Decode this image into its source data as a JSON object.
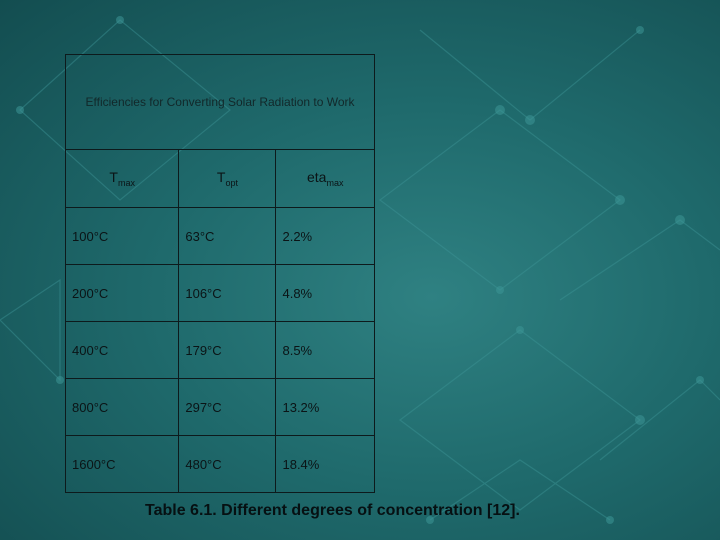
{
  "table": {
    "title": "Efficiencies for Converting Solar Radiation to Work",
    "headers": [
      {
        "main": "T",
        "sub": "max"
      },
      {
        "main": "T",
        "sub": "opt"
      },
      {
        "main": "eta",
        "sub": "max"
      }
    ],
    "rows": [
      [
        "100°C",
        "63°C",
        "2.2%"
      ],
      [
        "200°C",
        "106°C",
        "4.8%"
      ],
      [
        "400°C",
        "179°C",
        "8.5%"
      ],
      [
        "800°C",
        "297°C",
        "13.2%"
      ],
      [
        "1600°C",
        "480°C",
        "18.4%"
      ]
    ]
  },
  "caption": "Table 6.1. Different degrees of concentration [12].",
  "colors": {
    "background": "#1f6a6c",
    "table_border": "#0d1a1c",
    "text": "#0b1416"
  }
}
